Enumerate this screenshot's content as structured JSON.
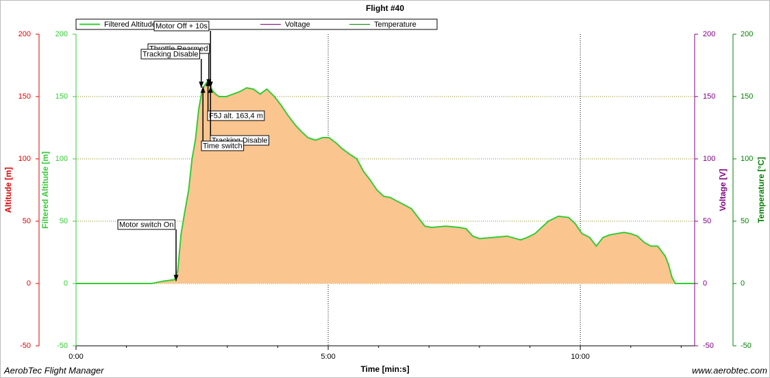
{
  "chart_data": {
    "type": "area",
    "title": "Flight #40",
    "x_label": "Time [min:s]",
    "xlim": [
      0,
      736
    ],
    "xticks": [
      {
        "value": 0,
        "label": "0:00"
      },
      {
        "value": 300,
        "label": "5:00"
      },
      {
        "value": 600,
        "label": "10:00"
      }
    ],
    "x_minor_ticks": [
      60,
      120,
      180,
      240,
      360,
      420,
      480,
      540,
      660,
      720
    ],
    "ylim": [
      -50,
      200
    ],
    "yticks": [
      -50,
      0,
      50,
      100,
      150,
      200
    ],
    "grid": true,
    "y_axes": [
      {
        "label": "Altitude [m]",
        "color": "#e00000",
        "side": "left"
      },
      {
        "label": "Filtered Altitude [m]",
        "color": "#33cc33",
        "side": "left"
      },
      {
        "label": "Voltage [V]",
        "color": "#800080",
        "side": "right"
      },
      {
        "label": "Temperature [°C]",
        "color": "#008000",
        "side": "right"
      }
    ],
    "x": [
      0,
      90,
      97,
      105,
      117,
      121,
      125,
      130,
      134,
      138,
      142,
      146,
      150,
      154,
      158,
      162,
      166,
      170,
      179,
      187,
      195,
      203,
      211,
      219,
      227,
      236,
      244,
      252,
      261,
      268,
      276,
      285,
      293,
      301,
      309,
      317,
      325,
      334,
      342,
      350,
      358,
      366,
      374,
      382,
      391,
      399,
      407,
      415,
      423,
      440,
      456,
      464,
      472,
      480,
      497,
      513,
      529,
      537,
      546,
      554,
      562,
      574,
      586,
      594,
      602,
      611,
      619,
      627,
      635,
      643,
      652,
      660,
      668,
      676,
      684,
      692,
      701,
      705,
      709,
      713,
      736
    ],
    "series": [
      {
        "name": "Filtered Altitude",
        "color": "#33cc33",
        "fill": "#fbc590",
        "values": [
          0,
          0,
          1,
          2,
          3,
          10,
          40,
          60,
          75,
          100,
          115,
          140,
          155,
          160,
          163.4,
          155,
          152,
          150,
          150,
          152,
          154,
          157,
          156,
          152,
          156,
          150,
          143,
          135,
          127,
          122,
          117,
          115,
          117,
          117,
          113,
          108,
          104,
          100,
          90,
          83,
          75,
          70,
          69,
          66,
          63,
          60,
          53,
          46,
          45,
          46,
          45,
          44,
          38,
          36,
          37,
          38,
          35,
          37,
          40,
          45,
          50,
          54,
          53,
          48,
          40,
          37,
          30,
          37,
          39,
          40,
          41,
          40,
          38,
          33,
          30,
          30,
          22,
          15,
          5,
          0,
          0
        ]
      },
      {
        "name": "Voltage",
        "color": "#800080"
      },
      {
        "name": "Temperature",
        "color": "#008000"
      }
    ],
    "annotations": [
      {
        "text": "Motor Off + 10s",
        "x": 160,
        "y": 157
      },
      {
        "text": "Throttle Rearmed",
        "x": 158,
        "y": 159
      },
      {
        "text": "Tracking Disable",
        "x": 149,
        "y": 157
      },
      {
        "text": "F5J alt. 163,4 m",
        "x": 157,
        "y": 163.4
      },
      {
        "text": "Tracking Disable",
        "x": 160,
        "y": 158
      },
      {
        "text": "Time switch",
        "x": 151,
        "y": 158
      },
      {
        "text": "Motor switch On",
        "x": 119,
        "y": 2
      }
    ]
  },
  "footer": {
    "left": "AerobTec Flight Manager",
    "right": "www.aerobtec.com"
  }
}
